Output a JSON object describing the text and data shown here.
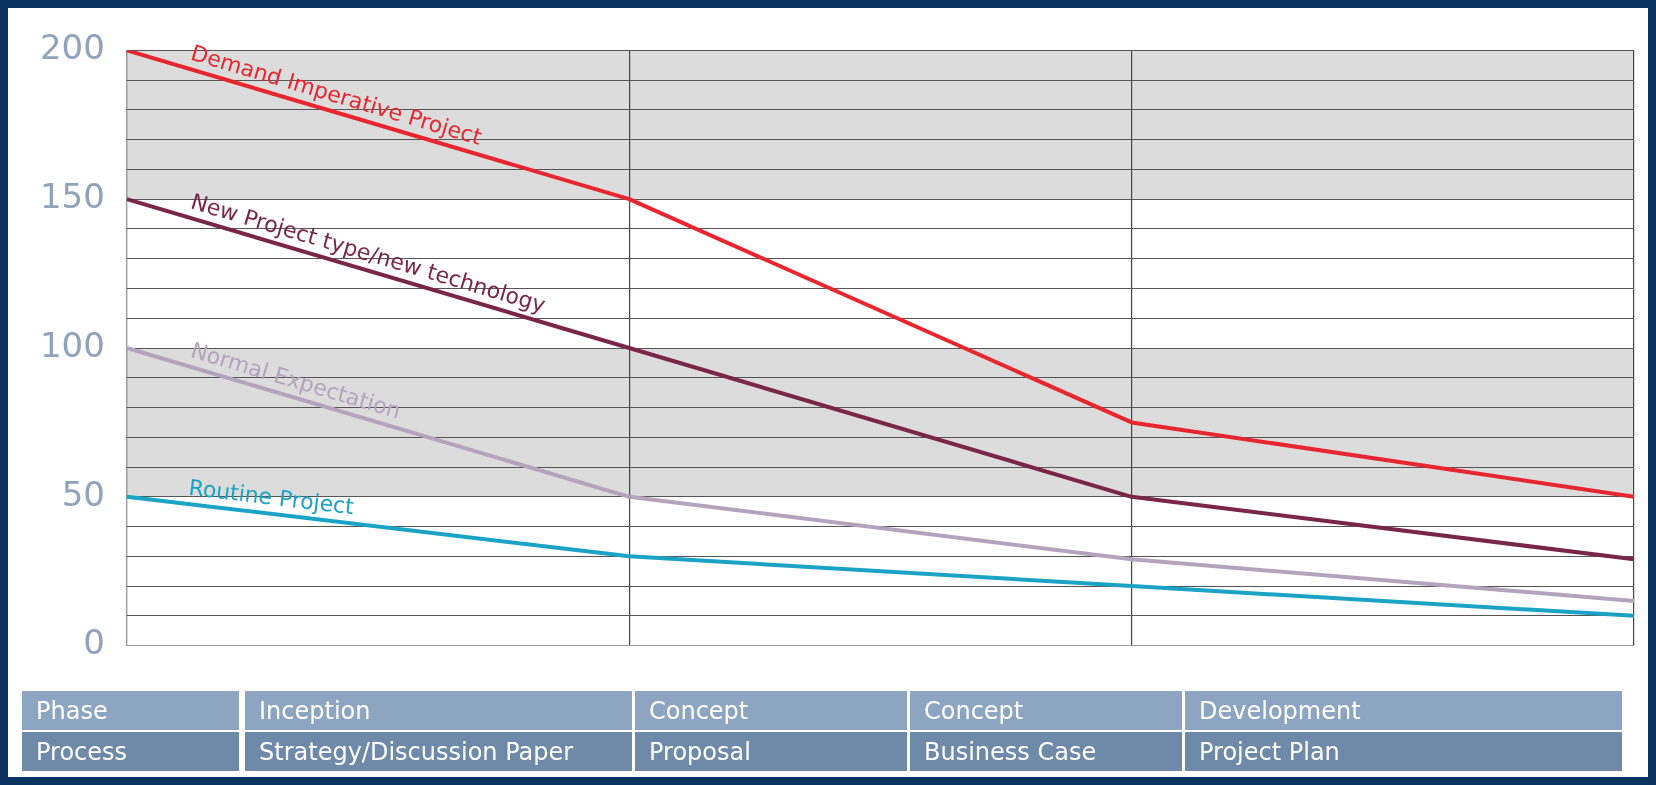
{
  "chart_data": {
    "type": "line",
    "categories": [
      null,
      null,
      null,
      null
    ],
    "series": [
      {
        "name": "Demand Imperative Project",
        "color": "#e8262f",
        "values": [
          200,
          150,
          75,
          50
        ]
      },
      {
        "name": "New Project type/new technology",
        "color": "#7a2648",
        "values": [
          150,
          100,
          50,
          29
        ]
      },
      {
        "name": "Normal Expectation",
        "color": "#b4a3bd",
        "values": [
          100,
          50,
          29,
          15
        ]
      },
      {
        "name": "Routine Project",
        "color": "#1aa3c4",
        "values": [
          50,
          30,
          20,
          10
        ]
      }
    ],
    "ylim": [
      0,
      200
    ],
    "yticks": [
      0,
      {
        "value": 10,
        "label": null
      },
      {
        "value": 20,
        "label": null
      },
      {
        "value": 30,
        "label": null
      },
      {
        "value": 40,
        "label": null
      },
      50,
      {
        "value": 60,
        "label": null
      },
      {
        "value": 70,
        "label": null
      },
      {
        "value": 80,
        "label": null
      },
      {
        "value": 90,
        "label": null
      },
      100,
      {
        "value": 110,
        "label": null
      },
      {
        "value": 120,
        "label": null
      },
      {
        "value": 130,
        "label": null
      },
      {
        "value": 140,
        "label": null
      },
      150,
      {
        "value": 160,
        "label": null
      },
      {
        "value": 170,
        "label": null
      },
      {
        "value": 180,
        "label": null
      },
      {
        "value": 190,
        "label": null
      },
      200
    ],
    "bands": [
      {
        "axis": "y",
        "from": 150,
        "to": 200,
        "color": "#dcdcdc"
      },
      {
        "axis": "y",
        "from": 50,
        "to": 100,
        "color": "#dcdcdc"
      }
    ],
    "grid": true,
    "legend": false,
    "marker": "none",
    "tick_labels": "y",
    "annotations": [
      "Phase",
      "Inception",
      "Concept",
      "Concept",
      "Development",
      "Process",
      "Strategy/Discussion Paper",
      "Proposal",
      "Business Case",
      "Project Plan"
    ]
  }
}
